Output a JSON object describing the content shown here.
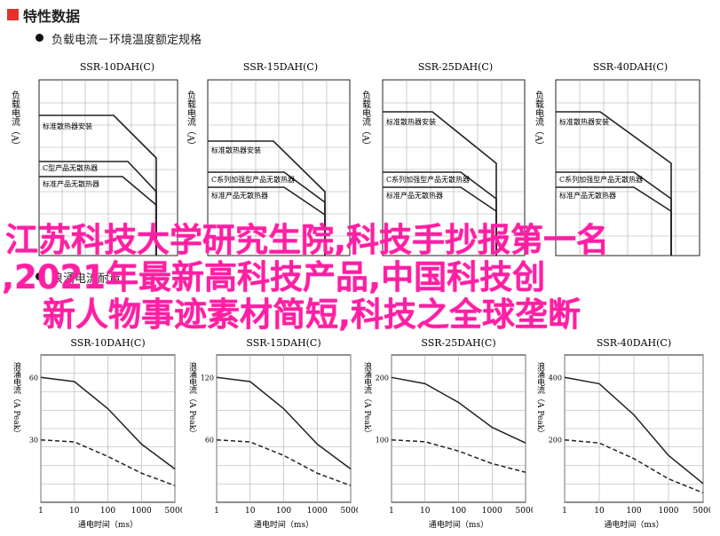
{
  "header": {
    "title": "特性数据"
  },
  "section1": {
    "subtitle": "负载电流－环境温度额定规格"
  },
  "section2": {
    "subtitle": "浪涌电流耐量"
  },
  "overlay": {
    "line1": "江苏科技大学研究生院,科技手抄报第一名",
    "line2": ",2021年最新高科技产品,中国科技创",
    "line3": "新人物事迹素材简短,科技之全球垄断"
  },
  "colors": {
    "accent": "#e4322b",
    "overlay_text": "#ff1fa3",
    "line": "#222222",
    "grid": "#9a9a9a"
  },
  "chart_data": [
    {
      "type": "line",
      "title": "SSR-10DAH(C)",
      "ylabel": "负载电流（A）",
      "annotations": [
        "标准散热器安装",
        "C型产品无散热器",
        "标准产品无散热器"
      ]
    },
    {
      "type": "line",
      "title": "SSR-15DAH(C)",
      "ylabel": "负载电流（A）",
      "annotations": [
        "标准散热器安装",
        "C系列加强型产品无散热器",
        "标准产品无散热器"
      ]
    },
    {
      "type": "line",
      "title": "SSR-25DAH(C)",
      "ylabel": "负载电流（A）",
      "annotations": [
        "标准散热器安装",
        "C系列加强型产品无散热器",
        "标准产品无散热器"
      ]
    },
    {
      "type": "line",
      "title": "SSR-40DAH(C)",
      "ylabel": "负载电流（A）",
      "annotations": [
        "标准散热器安装",
        "C系列加强型产品无散热器",
        "标准产品无散热器"
      ]
    },
    {
      "type": "line",
      "title": "SSR-10DAH(C)",
      "ylabel": "浪涌电流（A Peak）",
      "xlabel": "通电时间（ms）",
      "xticks": [
        "1",
        "10",
        "100",
        "1000",
        "5000"
      ],
      "yticks": [
        "60",
        "30"
      ],
      "series": [
        {
          "style": "solid",
          "values": [
            60,
            58,
            45,
            28,
            16
          ]
        },
        {
          "style": "dashed",
          "values": [
            30,
            29,
            22,
            14,
            8
          ]
        }
      ]
    },
    {
      "type": "line",
      "title": "SSR-15DAH(C)",
      "ylabel": "浪涌电流（A Peak）",
      "xlabel": "通电时间（ms）",
      "xticks": [
        "1",
        "10",
        "100",
        "1000",
        "5000"
      ],
      "yticks": [
        "120",
        "60"
      ],
      "series": [
        {
          "style": "solid",
          "values": [
            120,
            116,
            90,
            56,
            32
          ]
        },
        {
          "style": "dashed",
          "values": [
            60,
            58,
            45,
            28,
            16
          ]
        }
      ]
    },
    {
      "type": "line",
      "title": "SSR-25DAH(C)",
      "ylabel": "浪涌电流（A Peak）",
      "xlabel": "通电时间（ms）",
      "xticks": [
        "1",
        "10",
        "100",
        "1000",
        "5000"
      ],
      "yticks": [
        "200",
        "100"
      ],
      "series": [
        {
          "style": "solid",
          "values": [
            200,
            190,
            160,
            120,
            95
          ]
        },
        {
          "style": "dashed",
          "values": [
            100,
            97,
            82,
            62,
            48
          ]
        }
      ]
    },
    {
      "type": "line",
      "title": "SSR-40DAH(C)",
      "ylabel": "浪涌电流（A Peak）",
      "xlabel": "通电时间（ms）",
      "xticks": [
        "1",
        "10",
        "100",
        "1000",
        "5000"
      ],
      "yticks": [
        "400",
        "200"
      ],
      "series": [
        {
          "style": "solid",
          "values": [
            400,
            380,
            280,
            150,
            60
          ]
        },
        {
          "style": "dashed",
          "values": [
            200,
            190,
            140,
            75,
            30
          ]
        }
      ]
    }
  ]
}
